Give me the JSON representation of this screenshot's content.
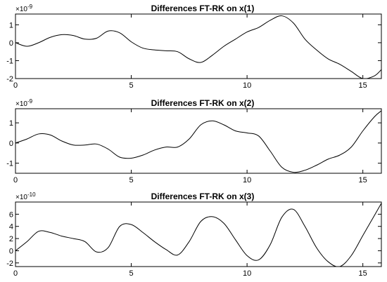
{
  "chart_data": [
    {
      "type": "line",
      "title": "Differences FT-RK on x(1)",
      "exponent_base": "×10",
      "exponent_power": "-9",
      "xlim": [
        0,
        15.8
      ],
      "ylim": [
        -2.0,
        1.6
      ],
      "xticks": [
        0,
        5,
        10,
        15
      ],
      "xtick_labels": [
        "0",
        "5",
        "10",
        "15"
      ],
      "yticks": [
        -2,
        -1,
        0,
        1
      ],
      "ytick_labels": [
        "-2",
        "-1",
        "0",
        "1"
      ],
      "x": [
        0,
        0.5,
        1,
        1.5,
        2,
        2.5,
        3,
        3.5,
        4,
        4.5,
        5,
        5.5,
        6,
        6.5,
        7,
        7.5,
        8,
        8.5,
        9,
        9.5,
        10,
        10.5,
        11,
        11.5,
        12,
        12.5,
        13,
        13.5,
        14,
        14.5,
        15,
        15.5,
        15.8
      ],
      "y": [
        0.0,
        -0.2,
        0.0,
        0.3,
        0.45,
        0.4,
        0.2,
        0.25,
        0.65,
        0.55,
        0.05,
        -0.3,
        -0.4,
        -0.45,
        -0.5,
        -0.9,
        -1.1,
        -0.7,
        -0.2,
        0.2,
        0.6,
        0.85,
        1.25,
        1.5,
        1.1,
        0.2,
        -0.4,
        -0.9,
        -1.2,
        -1.6,
        -2.0,
        -1.85,
        -1.5
      ]
    },
    {
      "type": "line",
      "title": "Differences FT-RK on x(2)",
      "exponent_base": "×10",
      "exponent_power": "-9",
      "xlim": [
        0,
        15.8
      ],
      "ylim": [
        -1.5,
        1.7
      ],
      "xticks": [
        0,
        5,
        10,
        15
      ],
      "xtick_labels": [
        "0",
        "5",
        "10",
        "15"
      ],
      "yticks": [
        -1,
        0,
        1
      ],
      "ytick_labels": [
        "-1",
        "0",
        "1"
      ],
      "x": [
        0,
        0.5,
        1,
        1.5,
        2,
        2.5,
        3,
        3.5,
        4,
        4.5,
        5,
        5.5,
        6,
        6.5,
        7,
        7.5,
        8,
        8.5,
        9,
        9.5,
        10,
        10.5,
        11,
        11.5,
        12,
        12.5,
        13,
        13.5,
        14,
        14.5,
        15,
        15.5,
        15.8
      ],
      "y": [
        0.0,
        0.2,
        0.45,
        0.4,
        0.1,
        -0.1,
        -0.1,
        -0.05,
        -0.3,
        -0.7,
        -0.75,
        -0.6,
        -0.35,
        -0.2,
        -0.2,
        0.2,
        0.9,
        1.1,
        0.9,
        0.6,
        0.5,
        0.35,
        -0.4,
        -1.2,
        -1.45,
        -1.35,
        -1.1,
        -0.8,
        -0.6,
        -0.2,
        0.6,
        1.3,
        1.6
      ]
    },
    {
      "type": "line",
      "title": "Differences FT-RK on x(3)",
      "exponent_base": "×10",
      "exponent_power": "-10",
      "xlim": [
        0,
        15.8
      ],
      "ylim": [
        -2.6,
        8.0
      ],
      "xticks": [
        0,
        5,
        10,
        15
      ],
      "xtick_labels": [
        "0",
        "5",
        "10",
        "15"
      ],
      "yticks": [
        -2,
        0,
        2,
        4,
        6
      ],
      "ytick_labels": [
        "-2",
        "0",
        "2",
        "4",
        "6"
      ],
      "x": [
        0,
        0.5,
        1,
        1.5,
        2,
        2.5,
        3,
        3.5,
        4,
        4.5,
        5,
        5.5,
        6,
        6.5,
        7,
        7.5,
        8,
        8.5,
        9,
        9.5,
        10,
        10.5,
        11,
        11.5,
        12,
        12.5,
        13,
        13.5,
        14,
        14.5,
        15,
        15.5,
        15.8
      ],
      "y": [
        0.0,
        1.5,
        3.2,
        3.0,
        2.4,
        2.0,
        1.5,
        -0.2,
        0.5,
        4.0,
        4.3,
        3.0,
        1.5,
        0.2,
        -0.7,
        1.5,
        4.8,
        5.6,
        4.5,
        1.8,
        -0.8,
        -1.5,
        1.0,
        5.5,
        6.8,
        4.0,
        0.5,
        -1.8,
        -2.6,
        -0.8,
        2.5,
        5.8,
        7.8
      ]
    }
  ]
}
